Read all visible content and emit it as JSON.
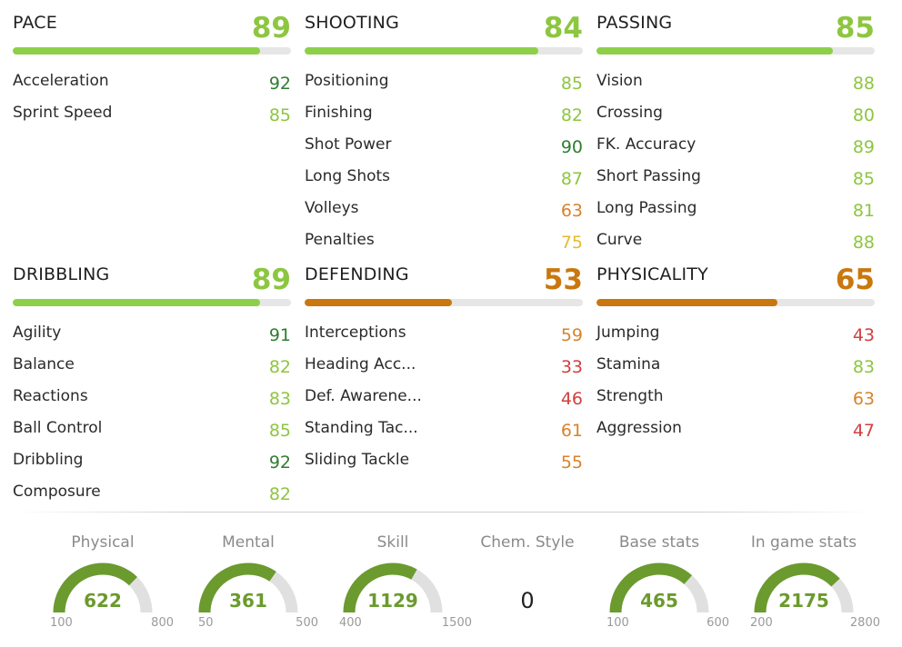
{
  "colors": {
    "bar_high": "#8dcf4a",
    "bar_mid": "#c9770e",
    "bar_track": "#e6e6e6",
    "value_top": "#2f7d32",
    "value_high": "#8dc63f",
    "value_mid_high": "#e8b92f",
    "value_mid": "#d9822b",
    "value_low": "#d24040",
    "gauge_fill": "#6b9a2e",
    "gauge_track": "#e0e0e0"
  },
  "categories": [
    {
      "key": "pace",
      "title": "PACE",
      "value": "89",
      "color": "#8dc63f",
      "bar_color": "#8dcf4a",
      "stats": [
        {
          "label": "Acceleration",
          "value": "92",
          "color": "#2f7d32"
        },
        {
          "label": "Sprint Speed",
          "value": "85",
          "color": "#8dc63f"
        }
      ]
    },
    {
      "key": "shooting",
      "title": "SHOOTING",
      "value": "84",
      "color": "#8dc63f",
      "bar_color": "#8dcf4a",
      "stats": [
        {
          "label": "Positioning",
          "value": "85",
          "color": "#8dc63f"
        },
        {
          "label": "Finishing",
          "value": "82",
          "color": "#8dc63f"
        },
        {
          "label": "Shot Power",
          "value": "90",
          "color": "#2f7d32"
        },
        {
          "label": "Long Shots",
          "value": "87",
          "color": "#8dc63f"
        },
        {
          "label": "Volleys",
          "value": "63",
          "color": "#d9822b"
        },
        {
          "label": "Penalties",
          "value": "75",
          "color": "#e8b92f"
        }
      ]
    },
    {
      "key": "passing",
      "title": "PASSING",
      "value": "85",
      "color": "#8dc63f",
      "bar_color": "#8dcf4a",
      "stats": [
        {
          "label": "Vision",
          "value": "88",
          "color": "#8dc63f"
        },
        {
          "label": "Crossing",
          "value": "80",
          "color": "#8dc63f"
        },
        {
          "label": "FK. Accuracy",
          "value": "89",
          "color": "#8dc63f"
        },
        {
          "label": "Short Passing",
          "value": "85",
          "color": "#8dc63f"
        },
        {
          "label": "Long Passing",
          "value": "81",
          "color": "#8dc63f"
        },
        {
          "label": "Curve",
          "value": "88",
          "color": "#8dc63f"
        }
      ]
    },
    {
      "key": "dribbling",
      "title": "DRIBBLING",
      "value": "89",
      "color": "#8dc63f",
      "bar_color": "#8dcf4a",
      "stats": [
        {
          "label": "Agility",
          "value": "91",
          "color": "#2f7d32"
        },
        {
          "label": "Balance",
          "value": "82",
          "color": "#8dc63f"
        },
        {
          "label": "Reactions",
          "value": "83",
          "color": "#8dc63f"
        },
        {
          "label": "Ball Control",
          "value": "85",
          "color": "#8dc63f"
        },
        {
          "label": "Dribbling",
          "value": "92",
          "color": "#2f7d32"
        },
        {
          "label": "Composure",
          "value": "82",
          "color": "#8dc63f"
        }
      ]
    },
    {
      "key": "defending",
      "title": "DEFENDING",
      "value": "53",
      "color": "#c9770e",
      "bar_color": "#c9770e",
      "stats": [
        {
          "label": "Interceptions",
          "value": "59",
          "color": "#d9822b"
        },
        {
          "label": "Heading Acc...",
          "value": "33",
          "color": "#d24040"
        },
        {
          "label": "Def. Awarene...",
          "value": "46",
          "color": "#d24040"
        },
        {
          "label": "Standing Tac...",
          "value": "61",
          "color": "#d9822b"
        },
        {
          "label": "Sliding Tackle",
          "value": "55",
          "color": "#d9822b"
        }
      ]
    },
    {
      "key": "physicality",
      "title": "PHYSICALITY",
      "value": "65",
      "color": "#c9770e",
      "bar_color": "#c9770e",
      "stats": [
        {
          "label": "Jumping",
          "value": "43",
          "color": "#d24040"
        },
        {
          "label": "Stamina",
          "value": "83",
          "color": "#8dc63f"
        },
        {
          "label": "Strength",
          "value": "63",
          "color": "#d9822b"
        },
        {
          "label": "Aggression",
          "value": "47",
          "color": "#d24040"
        }
      ]
    }
  ],
  "gauges": [
    {
      "label": "Physical",
      "value": "622",
      "min": "100",
      "max": "800"
    },
    {
      "label": "Mental",
      "value": "361",
      "min": "50",
      "max": "500"
    },
    {
      "label": "Skill",
      "value": "1129",
      "min": "400",
      "max": "1500"
    },
    {
      "label": "Chem. Style",
      "value": "0"
    },
    {
      "label": "Base stats",
      "value": "465",
      "min": "100",
      "max": "600"
    },
    {
      "label": "In game stats",
      "value": "2175",
      "min": "200",
      "max": "2800"
    }
  ]
}
